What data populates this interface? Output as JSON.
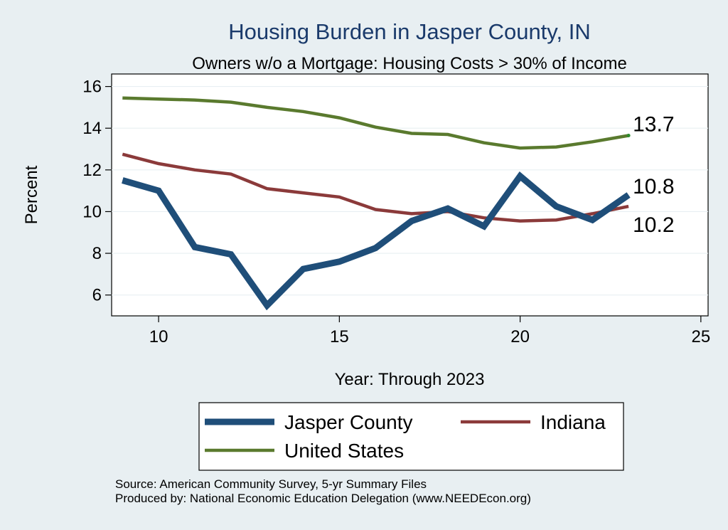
{
  "chart_data": {
    "type": "line",
    "title": "Housing Burden in Jasper County, IN",
    "subtitle": "Owners w/o a Mortgage: Housing Costs > 30% of Income",
    "xlabel": "Year: Through 2023",
    "ylabel": "Percent",
    "xlim": [
      8.7,
      25.2
    ],
    "ylim": [
      5.0,
      16.6
    ],
    "xticks": [
      10,
      15,
      20,
      25
    ],
    "yticks": [
      6,
      8,
      10,
      12,
      14,
      16
    ],
    "grid": true,
    "x": [
      9,
      10,
      11,
      12,
      13,
      14,
      15,
      16,
      17,
      18,
      19,
      20,
      21,
      22,
      23
    ],
    "series": [
      {
        "name": "Jasper County",
        "color": "#1f4e79",
        "values": [
          11.5,
          11.0,
          8.3,
          7.95,
          5.5,
          7.25,
          7.6,
          8.25,
          9.55,
          10.15,
          9.3,
          11.7,
          10.25,
          9.6,
          10.8
        ],
        "end_label": "10.8"
      },
      {
        "name": "Indiana",
        "color": "#8b3a3a",
        "values": [
          12.75,
          12.3,
          12.0,
          11.8,
          11.1,
          10.9,
          10.7,
          10.1,
          9.9,
          10.0,
          9.7,
          9.55,
          9.6,
          9.9,
          10.25
        ],
        "end_label": "10.2"
      },
      {
        "name": "United States",
        "color": "#5a7a2e",
        "values": [
          15.45,
          15.4,
          15.35,
          15.25,
          15.0,
          14.8,
          14.5,
          14.05,
          13.75,
          13.7,
          13.3,
          13.05,
          13.1,
          13.35,
          13.65
        ],
        "end_label": "13.7"
      }
    ],
    "legend": [
      "Jasper County",
      "Indiana",
      "United States"
    ],
    "legend_position": "bottom",
    "notes": [
      "Source: American Community Survey, 5-yr Summary Files",
      "Produced by: National Economic Education Delegation (www.NEEDEcon.org)"
    ]
  }
}
